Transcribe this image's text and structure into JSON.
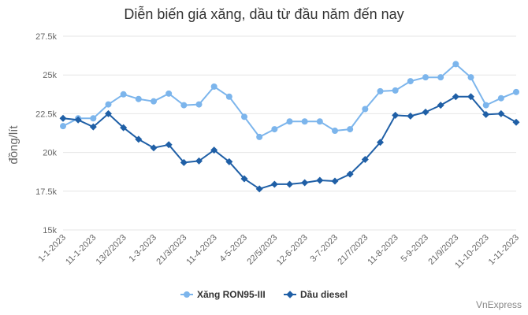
{
  "title": "Diễn biến giá xăng, dầu từ đầu năm đến nay",
  "credit": "VnExpress",
  "colors": {
    "series1": "#7cb5ec",
    "series2": "#1f5fa6",
    "grid": "#e6e6e6",
    "axis_text": "#666666"
  },
  "chart_data": {
    "type": "line",
    "ylabel": "đồng/lít",
    "xlabel": "",
    "ylim": [
      15000,
      27500
    ],
    "yticks": [
      15000,
      17500,
      20000,
      22500,
      25000,
      27500
    ],
    "ytick_labels": [
      "15k",
      "17.5k",
      "20k",
      "22.5k",
      "25k",
      "27.5k"
    ],
    "grid": true,
    "legend_position": "bottom-center",
    "x": [
      "1-1-2023",
      "3-1-2023",
      "11-1-2023",
      "1-2-2023",
      "13/2/2023",
      "21/2/2023",
      "1-3-2023",
      "13-3-2023",
      "21/3/2023",
      "1-4-2023",
      "11-4-2023",
      "21-4-2023",
      "4-5-2023",
      "11-5-2023",
      "22/5/2023",
      "1-6-2023",
      "12-6-2023",
      "21-6-2023",
      "3-7-2023",
      "11-7-2023",
      "21/7/2023",
      "1-8-2023",
      "11-8-2023",
      "21-8-2023",
      "5-9-2023",
      "11-9-2023",
      "21/9/2023",
      "2-10-2023",
      "11-10-2023",
      "23-10-2023",
      "1-11-2023"
    ],
    "x_tick_labels": [
      "1-1-2023",
      "",
      "11-1-2023",
      "",
      "13/2/2023",
      "",
      "1-3-2023",
      "",
      "21/3/2023",
      "",
      "11-4-2023",
      "",
      "4-5-2023",
      "",
      "22/5/2023",
      "",
      "12-6-2023",
      "",
      "3-7-2023",
      "",
      "21/7/2023",
      "",
      "11-8-2023",
      "",
      "5-9-2023",
      "",
      "21/9/2023",
      "",
      "11-10-2023",
      "",
      "1-11-2023"
    ],
    "series": [
      {
        "name": "Xăng RON95-III",
        "values": [
          21700,
          22200,
          22200,
          23100,
          23750,
          23450,
          23300,
          23800,
          23050,
          23100,
          24250,
          23600,
          22300,
          21000,
          21500,
          22000,
          22000,
          22000,
          21400,
          21500,
          22800,
          23950,
          24000,
          24600,
          24850,
          24850,
          25700,
          24850,
          23050,
          23500,
          23900
        ]
      },
      {
        "name": "Dầu diesel",
        "values": [
          22200,
          22100,
          21650,
          22500,
          21600,
          20850,
          20300,
          20500,
          19350,
          19450,
          20150,
          19400,
          18300,
          17650,
          17950,
          17950,
          18050,
          18200,
          18150,
          18600,
          19550,
          20650,
          22400,
          22350,
          22600,
          23050,
          23600,
          23600,
          22450,
          22500,
          21950
        ]
      }
    ]
  }
}
